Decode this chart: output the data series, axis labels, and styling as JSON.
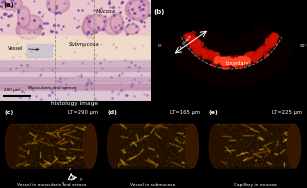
{
  "panel_a_label": "(a)",
  "panel_b_label": "(b)",
  "panel_c_label": "(c)",
  "panel_d_label": "(d)",
  "panel_e_label": "(e)",
  "panel_c_title": "LT=290 μm",
  "panel_d_title": "LT=165 μm",
  "panel_e_title": "LT=225 μm",
  "panel_c_caption": "Vessel in muscularis and serosa",
  "panel_d_caption": "Vessel in submucosa",
  "panel_e_caption": "Capillary in mucosa",
  "histology_label": "histology image",
  "boundary_label": "boundary",
  "scale_bar_text": "200 μm",
  "dimension_label": "4.7 mm",
  "angle_left": "0°",
  "angle_right": "90°",
  "bg_dark": "#000000",
  "bg_histology_bar": "#4a4a4a",
  "mucosa_bg": "#e8c8cc",
  "submucosa_bg": "#f0ddd0",
  "muscularis_bg": "#d8c8d8",
  "histology_bg": "#f5e8e8"
}
